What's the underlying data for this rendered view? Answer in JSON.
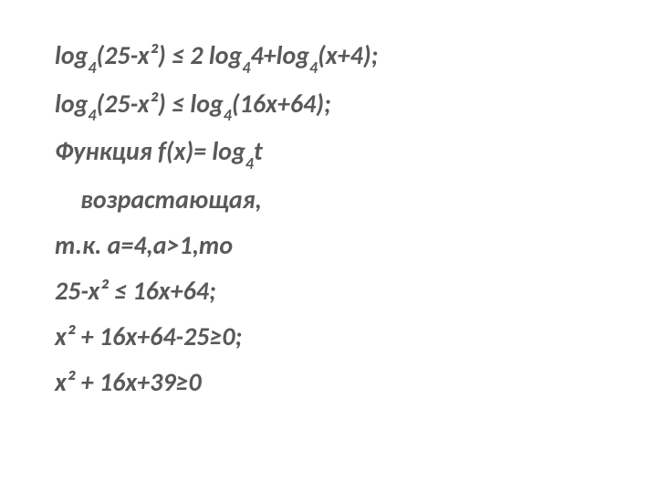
{
  "text_color": "#595959",
  "background_color": "#ffffff",
  "font_size_main": 28,
  "font_size_sub": 18,
  "font_style": "italic",
  "font_weight": "bold",
  "lines": {
    "l1_p1": "log",
    "l1_s1": "4",
    "l1_p2": "(25-x²) ≤ 2 log",
    "l1_s2": "4",
    "l1_p3": "4+log",
    "l1_s3": "4",
    "l1_p4": "(x+4);",
    "l2_p1": "log",
    "l2_s1": "4",
    "l2_p2": "(25-x²) ≤ log",
    "l2_s2": "4",
    "l2_p3": "(16x+64);",
    "l3_p1": "Функция f(x)= log",
    "l3_s1": "4",
    "l3_p2": "t",
    "l3_cont": "возрастающая,",
    "l4": "т.к. a=4,a>1,то",
    "l5": "25-x² ≤ 16x+64;",
    "l6": "x² + 16x+64-25≥0;",
    "l7": "x² + 16x+39≥0"
  }
}
